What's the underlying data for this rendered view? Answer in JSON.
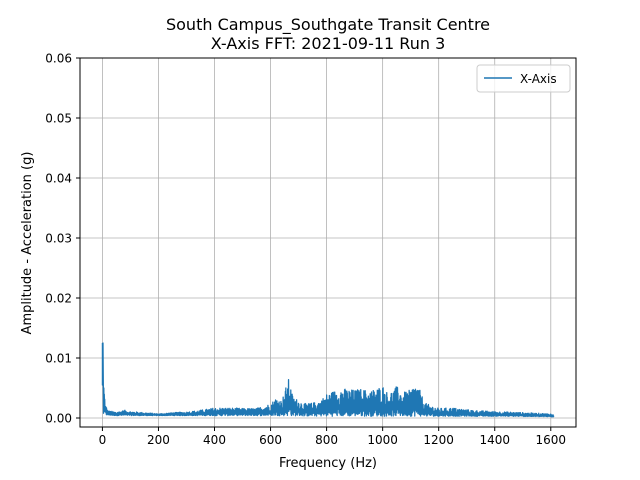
{
  "chart_data": {
    "type": "line",
    "title_line1": "South Campus_Southgate Transit Centre",
    "title_line2": "X-Axis FFT: 2021-09-11 Run 3",
    "xlabel": "Frequency (Hz)",
    "ylabel": "Amplitude - Acceleration (g)",
    "xlim": [
      -80,
      1690
    ],
    "ylim": [
      -0.0015,
      0.06
    ],
    "xticks": [
      0,
      200,
      400,
      600,
      800,
      1000,
      1200,
      1400,
      1600
    ],
    "xtick_labels": [
      "0",
      "200",
      "400",
      "600",
      "800",
      "1000",
      "1200",
      "1400",
      "1600"
    ],
    "yticks": [
      0.0,
      0.01,
      0.02,
      0.03,
      0.04,
      0.05,
      0.06
    ],
    "ytick_labels": [
      "0.00",
      "0.01",
      "0.02",
      "0.03",
      "0.04",
      "0.05",
      "0.06"
    ],
    "grid": true,
    "legend": {
      "position": "top-right",
      "entries": [
        "X-Axis"
      ]
    },
    "series": [
      {
        "name": "X-Axis",
        "color": "#1f77b4",
        "envelope_max": [
          [
            0,
            0.0125
          ],
          [
            5,
            0.0063
          ],
          [
            10,
            0.0024
          ],
          [
            20,
            0.0012
          ],
          [
            50,
            0.001
          ],
          [
            80,
            0.0013
          ],
          [
            100,
            0.0011
          ],
          [
            150,
            0.0009
          ],
          [
            200,
            0.0007
          ],
          [
            250,
            0.0009
          ],
          [
            300,
            0.001
          ],
          [
            350,
            0.0013
          ],
          [
            400,
            0.0017
          ],
          [
            450,
            0.0017
          ],
          [
            500,
            0.0016
          ],
          [
            550,
            0.0016
          ],
          [
            600,
            0.0024
          ],
          [
            620,
            0.0034
          ],
          [
            640,
            0.0029
          ],
          [
            655,
            0.0052
          ],
          [
            665,
            0.0066
          ],
          [
            680,
            0.0035
          ],
          [
            700,
            0.003
          ],
          [
            720,
            0.0024
          ],
          [
            750,
            0.0025
          ],
          [
            780,
            0.003
          ],
          [
            800,
            0.004
          ],
          [
            825,
            0.0045
          ],
          [
            850,
            0.005
          ],
          [
            875,
            0.0048
          ],
          [
            900,
            0.0047
          ],
          [
            925,
            0.0049
          ],
          [
            950,
            0.0045
          ],
          [
            980,
            0.005
          ],
          [
            1000,
            0.0055
          ],
          [
            1020,
            0.004
          ],
          [
            1050,
            0.0053
          ],
          [
            1070,
            0.0042
          ],
          [
            1100,
            0.0047
          ],
          [
            1115,
            0.0057
          ],
          [
            1130,
            0.005
          ],
          [
            1150,
            0.0025
          ],
          [
            1200,
            0.0016
          ],
          [
            1250,
            0.0017
          ],
          [
            1300,
            0.0014
          ],
          [
            1350,
            0.0012
          ],
          [
            1400,
            0.0011
          ],
          [
            1450,
            0.001
          ],
          [
            1500,
            0.0009
          ],
          [
            1550,
            0.0008
          ],
          [
            1600,
            0.0007
          ],
          [
            1610,
            0.0005
          ]
        ],
        "envelope_min": [
          [
            0,
            0.0005
          ],
          [
            50,
            0.0004
          ],
          [
            200,
            0.0004
          ],
          [
            400,
            0.0004
          ],
          [
            600,
            0.0004
          ],
          [
            800,
            0.0003
          ],
          [
            1000,
            0.0003
          ],
          [
            1200,
            0.0003
          ],
          [
            1400,
            0.0003
          ],
          [
            1600,
            0.0002
          ],
          [
            1610,
            0.0002
          ]
        ]
      }
    ]
  }
}
